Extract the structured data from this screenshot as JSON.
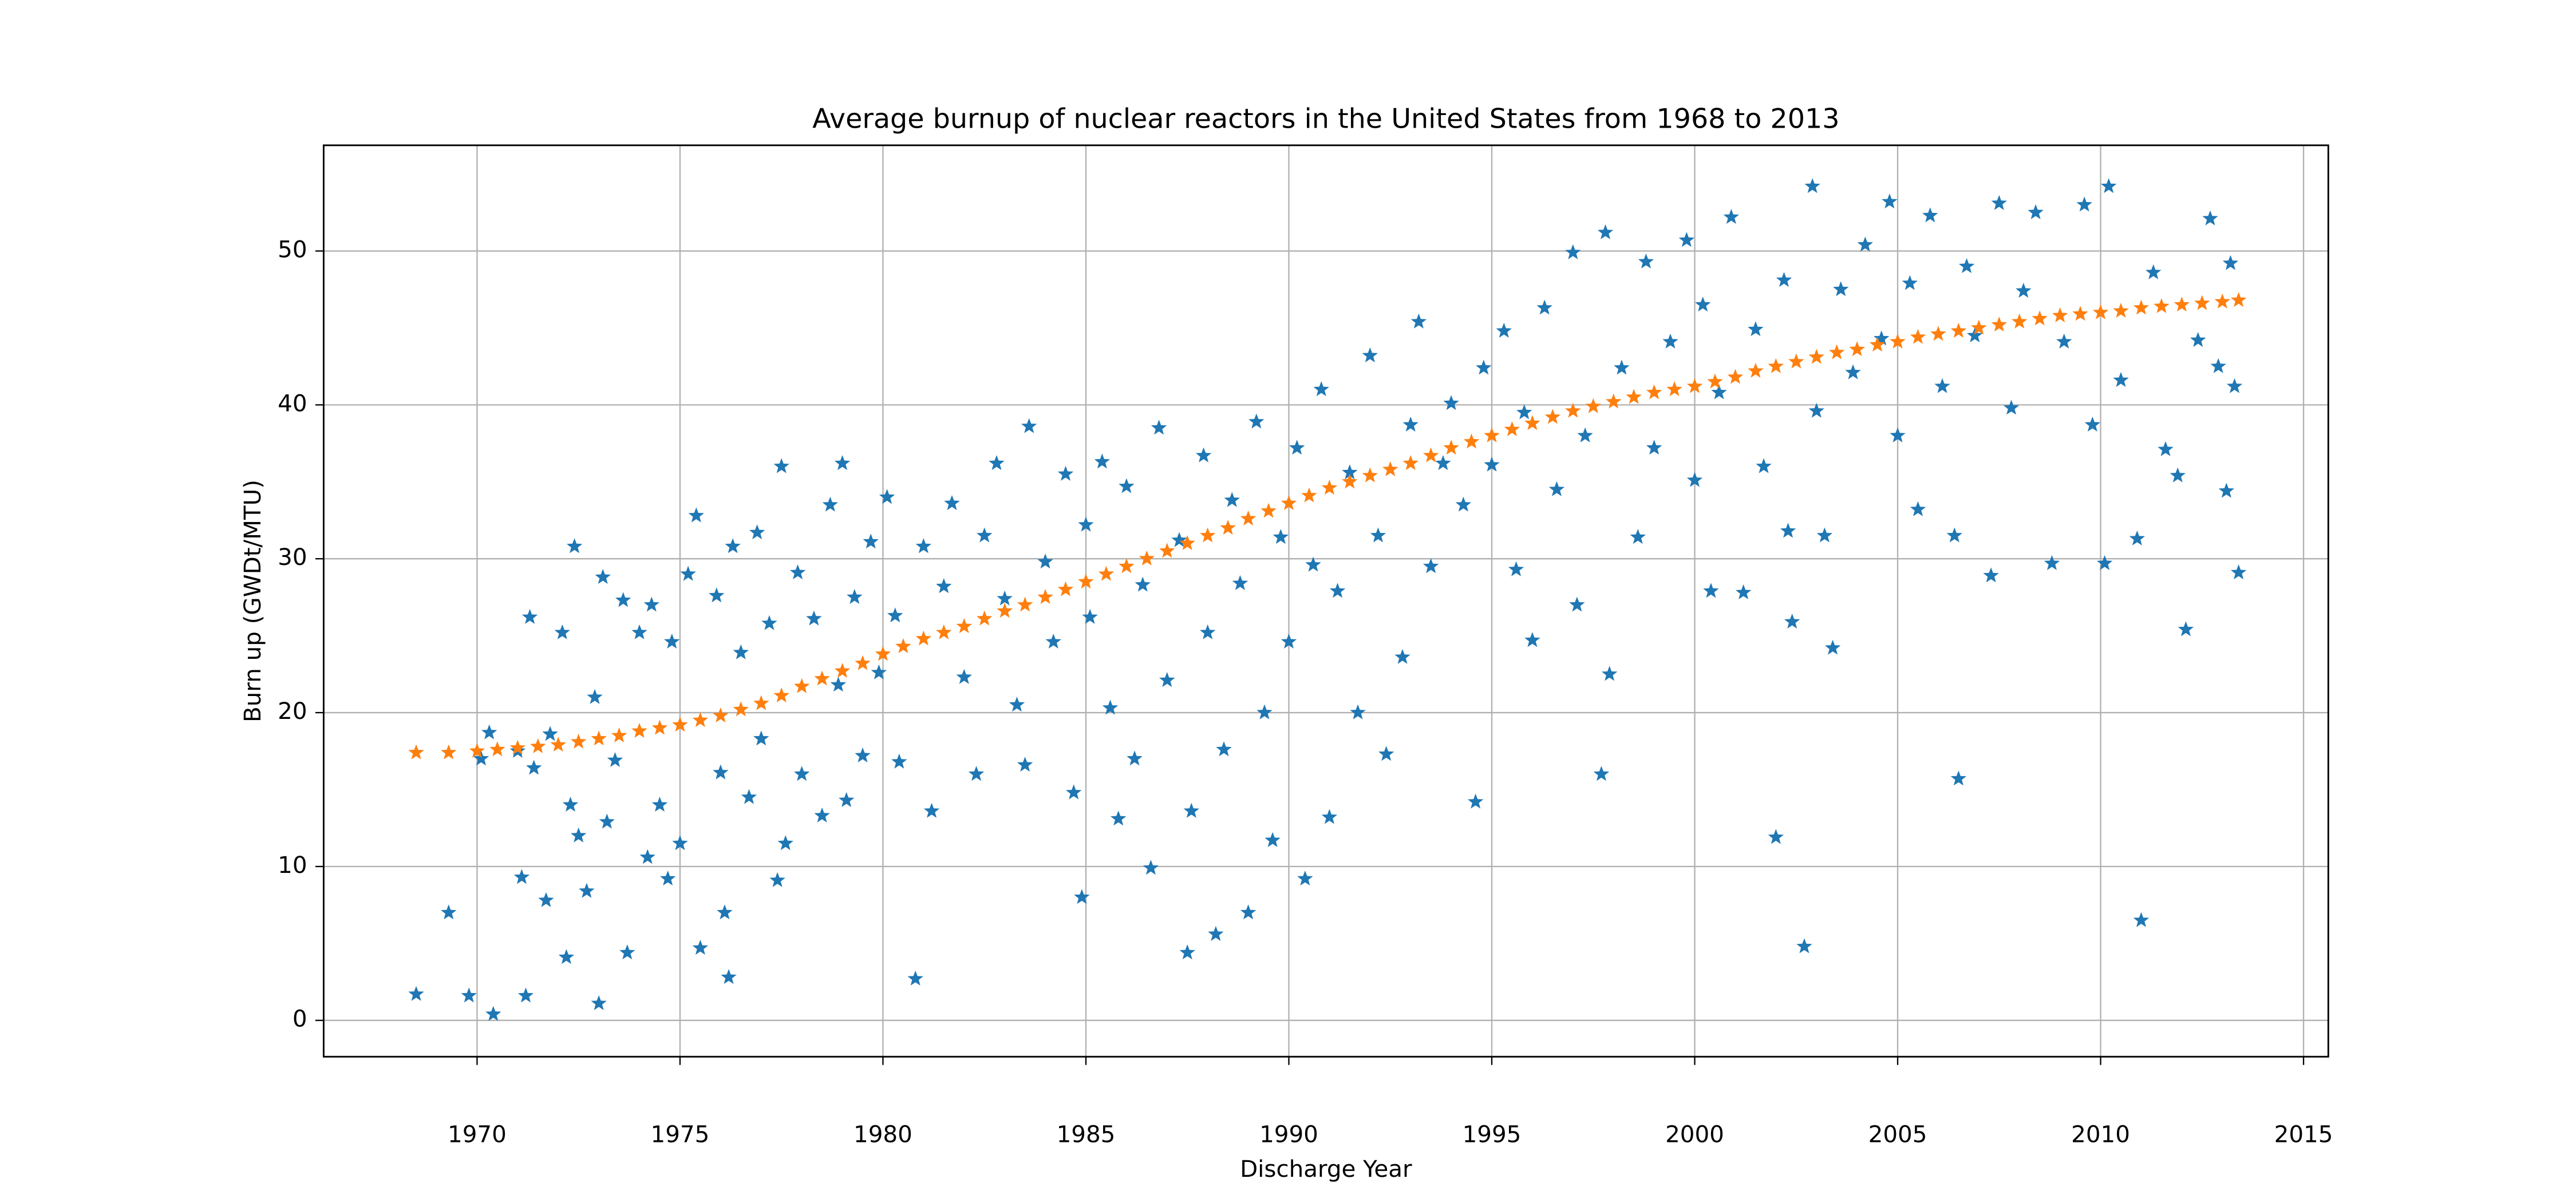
{
  "chart_data": {
    "type": "scatter",
    "title": "Average burnup of nuclear reactors in the United States from 1968 to 2013",
    "x_label": "Discharge Year",
    "y_label": "Burn up (GWDt/MTU)",
    "xlim": [
      1966.22,
      2015.61
    ],
    "ylim": [
      -2.36,
      56.87
    ],
    "xticks": [
      1970,
      1975,
      1980,
      1985,
      1990,
      1995,
      2000,
      2005,
      2010,
      2015
    ],
    "yticks": [
      0,
      10,
      20,
      30,
      40,
      50
    ],
    "grid": true,
    "marker": "star",
    "series": [
      {
        "color": "#1f77b4",
        "x": [
          1968.5,
          1969.3,
          1969.8,
          1970.1,
          1970.3,
          1970.4,
          1971,
          1971.1,
          1971.2,
          1971.3,
          1971.4,
          1971.7,
          1971.8,
          1972.1,
          1972.2,
          1972.3,
          1972.4,
          1972.5,
          1972.7,
          1972.9,
          1973.0,
          1973.1,
          1973.2,
          1973.4,
          1973.6,
          1973.7,
          1974,
          1974.2,
          1974.3,
          1974.5,
          1974.7,
          1974.8,
          1975,
          1975.2,
          1975.4,
          1975.5,
          1975.9,
          1976,
          1976.1,
          1976.2,
          1976.3,
          1976.5,
          1976.7,
          1976.9,
          1977,
          1977.2,
          1977.4,
          1977.5,
          1977.6,
          1977.9,
          1978,
          1978.3,
          1978.5,
          1978.7,
          1978.9,
          1979,
          1979.1,
          1979.3,
          1979.5,
          1979.7,
          1979.9,
          1980.1,
          1980.3,
          1980.4,
          1980.8,
          1981,
          1981.2,
          1981.5,
          1981.7,
          1982,
          1982.3,
          1982.5,
          1982.8,
          1983,
          1983.3,
          1983.5,
          1983.6,
          1984,
          1984.2,
          1984.5,
          1984.7,
          1984.9,
          1985,
          1985.1,
          1985.4,
          1985.6,
          1985.8,
          1986,
          1986.2,
          1986.4,
          1986.6,
          1986.8,
          1987,
          1987.3,
          1987.5,
          1987.6,
          1987.9,
          1988,
          1988.2,
          1988.4,
          1988.6,
          1988.8,
          1989,
          1989.2,
          1989.4,
          1989.6,
          1989.8,
          1990,
          1990.2,
          1990.4,
          1990.6,
          1990.8,
          1991,
          1991.2,
          1991.5,
          1991.7,
          1992,
          1992.2,
          1992.4,
          1992.8,
          1993,
          1993.2,
          1993.5,
          1993.8,
          1994,
          1994.3,
          1994.6,
          1994.8,
          1995,
          1995.3,
          1995.6,
          1995.8,
          1996,
          1996.3,
          1996.6,
          1997,
          1997.1,
          1997.3,
          1997.7,
          1997.8,
          1997.9,
          1998.2,
          1998.6,
          1998.8,
          1999,
          1999.4,
          1999.8,
          2000,
          2000.2,
          2000.4,
          2000.6,
          2000.9,
          2001.2,
          2001.5,
          2001.7,
          2002,
          2002.2,
          2002.3,
          2002.4,
          2002.7,
          2002.9,
          2003,
          2003.2,
          2003.4,
          2003.6,
          2003.9,
          2004.2,
          2004.6,
          2004.8,
          2005,
          2005.3,
          2005.5,
          2005.8,
          2006.1,
          2006.4,
          2006.5,
          2006.7,
          2006.9,
          2007.3,
          2007.5,
          2007.8,
          2008.1,
          2008.4,
          2008.8,
          2009.1,
          2009.6,
          2009.8,
          2010.1,
          2010.2,
          2010.5,
          2010.9,
          2011,
          2011.3,
          2011.6,
          2011.9,
          2012.1,
          2012.4,
          2012.7,
          2012.9,
          2013.1,
          2013.2,
          2013.3,
          2013.4
        ],
        "values": [
          1.7,
          7,
          1.6,
          17,
          18.7,
          0.4,
          17.5,
          9.3,
          1.6,
          26.2,
          16.4,
          7.8,
          18.6,
          25.2,
          4.1,
          14,
          30.8,
          12,
          8.4,
          21,
          1.1,
          28.8,
          12.9,
          16.9,
          27.3,
          4.4,
          25.2,
          10.6,
          27,
          14,
          9.2,
          24.6,
          11.5,
          29,
          32.8,
          4.7,
          27.6,
          16.1,
          7,
          2.8,
          30.8,
          23.9,
          14.5,
          31.7,
          18.3,
          25.8,
          9.1,
          36,
          11.5,
          29.1,
          16,
          26.1,
          13.3,
          33.5,
          21.8,
          36.2,
          14.3,
          27.5,
          17.2,
          31.1,
          22.6,
          34,
          26.3,
          16.8,
          2.7,
          30.8,
          13.6,
          28.2,
          33.6,
          22.3,
          16,
          31.5,
          36.2,
          27.4,
          20.5,
          16.6,
          38.6,
          29.8,
          24.6,
          35.5,
          14.8,
          8,
          32.2,
          26.2,
          36.3,
          20.3,
          13.1,
          34.7,
          17,
          28.3,
          9.9,
          38.5,
          22.1,
          31.2,
          4.4,
          13.6,
          36.7,
          25.2,
          5.6,
          17.6,
          33.8,
          28.4,
          7,
          38.9,
          20,
          11.7,
          31.4,
          24.6,
          37.2,
          9.2,
          29.6,
          41,
          13.2,
          27.9,
          35.6,
          20,
          43.2,
          31.5,
          17.3,
          23.6,
          38.7,
          45.4,
          29.5,
          36.2,
          40.1,
          33.5,
          14.2,
          42.4,
          36.1,
          44.8,
          29.3,
          39.5,
          24.7,
          46.3,
          34.5,
          49.9,
          27,
          38,
          16,
          51.2,
          22.5,
          42.4,
          31.4,
          49.3,
          37.2,
          44.1,
          50.7,
          35.1,
          46.5,
          27.9,
          40.8,
          52.2,
          27.8,
          44.9,
          36,
          11.9,
          48.1,
          31.8,
          25.9,
          4.8,
          54.2,
          39.6,
          31.5,
          24.2,
          47.5,
          42.1,
          50.4,
          44.3,
          53.2,
          38,
          47.9,
          33.2,
          52.3,
          41.2,
          31.5,
          15.7,
          49,
          44.5,
          28.9,
          53.1,
          39.8,
          47.4,
          52.5,
          29.7,
          44.1,
          53,
          38.7,
          29.7,
          54.2,
          41.6,
          31.3,
          6.5,
          48.6,
          37.1,
          35.4,
          25.4,
          44.2,
          52.1,
          42.5,
          34.4,
          49.2,
          41.2,
          29.1
        ]
      },
      {
        "color": "#ff7f0e",
        "x": [
          1968.5,
          1969.3,
          1970,
          1970.5,
          1971,
          1971.5,
          1972,
          1972.5,
          1973,
          1973.5,
          1974,
          1974.5,
          1975,
          1975.5,
          1976,
          1976.5,
          1977,
          1977.5,
          1978,
          1978.5,
          1979,
          1979.5,
          1980,
          1980.5,
          1981,
          1981.5,
          1982,
          1982.5,
          1983,
          1983.5,
          1984,
          1984.5,
          1985,
          1985.5,
          1986,
          1986.5,
          1987,
          1987.5,
          1988,
          1988.5,
          1989,
          1989.5,
          1990,
          1990.5,
          1991,
          1991.5,
          1992,
          1992.5,
          1993,
          1993.5,
          1994,
          1994.5,
          1995,
          1995.5,
          1996,
          1996.5,
          1997,
          1997.5,
          1998,
          1998.5,
          1999,
          1999.5,
          2000,
          2000.5,
          2001,
          2001.5,
          2002,
          2002.5,
          2003,
          2003.5,
          2004,
          2004.5,
          2005,
          2005.5,
          2006,
          2006.5,
          2007,
          2007.5,
          2008,
          2008.5,
          2009,
          2009.5,
          2010,
          2010.5,
          2011,
          2011.5,
          2012,
          2012.5,
          2013,
          2013.4
        ],
        "values": [
          17.4,
          17.4,
          17.5,
          17.6,
          17.7,
          17.8,
          17.9,
          18.1,
          18.3,
          18.5,
          18.8,
          19.0,
          19.2,
          19.5,
          19.8,
          20.2,
          20.6,
          21.1,
          21.7,
          22.2,
          22.7,
          23.2,
          23.8,
          24.3,
          24.8,
          25.2,
          25.6,
          26.1,
          26.6,
          27.0,
          27.5,
          28.0,
          28.5,
          29.0,
          29.5,
          30.0,
          30.5,
          31.0,
          31.5,
          32.0,
          32.6,
          33.1,
          33.6,
          34.1,
          34.6,
          35.0,
          35.4,
          35.8,
          36.2,
          36.7,
          37.2,
          37.6,
          38.0,
          38.4,
          38.8,
          39.2,
          39.6,
          39.9,
          40.2,
          40.5,
          40.8,
          41.0,
          41.2,
          41.5,
          41.8,
          42.2,
          42.5,
          42.8,
          43.1,
          43.4,
          43.6,
          43.9,
          44.1,
          44.4,
          44.6,
          44.8,
          45.0,
          45.2,
          45.4,
          45.6,
          45.8,
          45.9,
          46.0,
          46.1,
          46.3,
          46.4,
          46.5,
          46.6,
          46.7,
          46.8
        ]
      }
    ]
  }
}
